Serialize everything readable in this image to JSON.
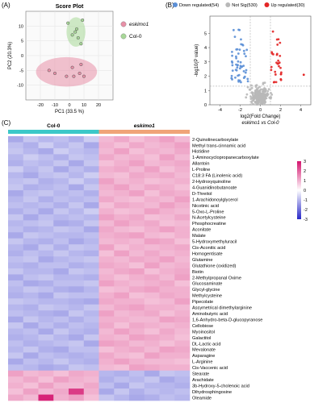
{
  "panels": {
    "a_label": "(A)",
    "b_label": "(B)",
    "c_label": "(C)"
  },
  "chart_data": [
    {
      "type": "scatter",
      "title": "Score Plot",
      "xlabel": "PC1 (33.5 %)",
      "ylabel": "PC2 (20.3%)",
      "xlim": [
        -30,
        30
      ],
      "ylim": [
        -15,
        15
      ],
      "xticks": [
        "-20",
        "-10",
        "0",
        "10",
        "20"
      ],
      "yticks": [
        "-10",
        "-5",
        "0",
        "5",
        "10"
      ],
      "grid": true,
      "legend_position": "right",
      "colors": {
        "eskimo1": "#e890a8",
        "Col-0": "#a8d898"
      },
      "series": [
        {
          "name": "eskimo1",
          "x": [
            -14,
            -10,
            -2,
            2,
            3,
            7,
            8,
            10
          ],
          "y": [
            -5,
            -6,
            -7,
            -4,
            -7,
            -6,
            -3,
            -7
          ]
        },
        {
          "name": "Col-0",
          "x": [
            -1,
            2,
            4,
            5,
            6,
            8,
            9
          ],
          "y": [
            11,
            7,
            8,
            9,
            6,
            4,
            12
          ]
        }
      ],
      "ellipses": [
        {
          "series": "eskimo1",
          "cx": -2,
          "cy": -5.5,
          "rx": 21,
          "ry": 5
        },
        {
          "series": "Col-0",
          "cx": 4.5,
          "cy": 8,
          "rx": 6.5,
          "ry": 5
        }
      ]
    },
    {
      "type": "scatter",
      "title": "",
      "xlabel": "log2(Fold Change)",
      "xlabel2": "eskimo1 vs Col-0",
      "ylabel": "-log10(P value)",
      "xlim": [
        -5,
        5
      ],
      "ylim": [
        0,
        6.2
      ],
      "xticks": [
        "-4",
        "-2",
        "0",
        "2",
        "4"
      ],
      "yticks": [
        "0",
        "1",
        "2",
        "3",
        "4",
        "5"
      ],
      "thresholds": {
        "fc": [
          -1,
          1
        ],
        "p": 1.3
      },
      "legend_position": "top",
      "series": [
        {
          "name": "Down regulated(54)",
          "color": "#5b8fd6"
        },
        {
          "name": "Not Sig(530)",
          "color": "#b8b8b8"
        },
        {
          "name": "Up regulated(30)",
          "color": "#e32626"
        }
      ],
      "outlier_up": [
        {
          "x": 4.3,
          "y": 2.1
        }
      ]
    },
    {
      "type": "heatmap",
      "groups": [
        {
          "name": "Col-0",
          "columns": 6,
          "color": "#3cc8c8"
        },
        {
          "name": "eskimo1",
          "columns": 6,
          "color": "#f0a478"
        }
      ],
      "colorbar": {
        "min": -3,
        "max": 3,
        "ticks": [
          "3",
          "2",
          "1",
          "0",
          "-1",
          "-2",
          "-3"
        ],
        "low": "#2828c8",
        "mid": "#ffffff",
        "high": "#d4146e"
      },
      "rows": [
        {
          "label": "2-Quinolinecarboxylate",
          "values": [
            -1.2,
            -0.8,
            -1.0,
            -0.9,
            -1.1,
            -0.7,
            0.9,
            1.1,
            0.8,
            1.0,
            1.2,
            0.9
          ]
        },
        {
          "label": "Methyl trans-cinnamic acid",
          "values": [
            -0.9,
            -1.1,
            -0.7,
            -1.0,
            -0.8,
            -1.2,
            1.0,
            0.8,
            1.1,
            0.9,
            1.0,
            1.2
          ]
        },
        {
          "label": "Histidine",
          "values": [
            -0.8,
            -1.0,
            -1.2,
            -0.7,
            -0.9,
            -1.0,
            0.9,
            1.2,
            0.8,
            1.0,
            0.9,
            1.1
          ]
        },
        {
          "label": "1-Aminocyclopropanecarboxylate",
          "values": [
            -1.0,
            -0.7,
            -0.9,
            -1.1,
            -0.8,
            -0.9,
            1.1,
            0.9,
            1.0,
            0.8,
            1.2,
            0.9
          ]
        },
        {
          "label": "Allantoin",
          "values": [
            -1.1,
            -0.9,
            -1.0,
            -0.8,
            -1.2,
            -0.8,
            0.8,
            1.0,
            1.2,
            0.9,
            1.0,
            1.1
          ]
        },
        {
          "label": "L-Proline",
          "values": [
            -0.7,
            -1.0,
            -0.8,
            -1.2,
            -0.9,
            -1.1,
            1.0,
            1.1,
            0.9,
            1.2,
            0.8,
            1.0
          ]
        },
        {
          "label": "C18:3 FA (Linolenic acid)",
          "values": [
            -1.0,
            -1.2,
            -0.9,
            -0.8,
            -1.0,
            -0.7,
            0.9,
            0.8,
            1.1,
            1.0,
            1.1,
            0.9
          ]
        },
        {
          "label": "2-Hydroxyquinoline",
          "values": [
            -0.9,
            -0.8,
            -1.1,
            -1.0,
            -0.7,
            -1.0,
            1.2,
            0.9,
            1.0,
            0.8,
            0.9,
            1.0
          ]
        },
        {
          "label": "4-Guanidinobutanoate",
          "values": [
            -0.8,
            -1.1,
            -1.0,
            -0.9,
            -1.2,
            -0.8,
            1.0,
            1.2,
            0.9,
            1.1,
            1.0,
            0.8
          ]
        },
        {
          "label": "D-Threitol",
          "values": [
            -1.2,
            -0.9,
            -0.8,
            -1.0,
            -0.9,
            -1.1,
            0.9,
            1.0,
            1.2,
            0.8,
            1.1,
            1.0
          ]
        },
        {
          "label": "1-Arachidonoylglycerol",
          "values": [
            -1.0,
            -0.8,
            -1.1,
            -0.9,
            -1.0,
            -0.9,
            1.1,
            0.9,
            0.8,
            1.0,
            0.9,
            1.2
          ]
        },
        {
          "label": "Nicotinic acid",
          "values": [
            -0.9,
            -1.0,
            -0.9,
            -1.1,
            -0.8,
            -1.2,
            0.8,
            1.1,
            1.0,
            0.9,
            1.2,
            1.0
          ]
        },
        {
          "label": "5-Oxo-L-Proline",
          "values": [
            -1.1,
            -0.9,
            -1.2,
            -0.8,
            -1.0,
            -0.7,
            1.0,
            0.8,
            0.9,
            1.2,
            1.0,
            0.9
          ]
        },
        {
          "label": "N-Acetylcysteine",
          "values": [
            -0.8,
            -1.2,
            -0.9,
            -1.0,
            -0.9,
            -1.0,
            1.2,
            1.0,
            1.1,
            0.8,
            0.9,
            1.1
          ]
        },
        {
          "label": "Phosphocreatine",
          "values": [
            -1.0,
            -0.9,
            -0.8,
            -1.2,
            -1.1,
            -0.8,
            0.9,
            1.2,
            1.0,
            1.1,
            0.8,
            0.9
          ]
        },
        {
          "label": "Aconitate",
          "values": [
            -0.9,
            -1.1,
            -1.0,
            -0.8,
            -0.9,
            -1.2,
            1.1,
            0.9,
            0.8,
            1.0,
            1.2,
            1.0
          ]
        },
        {
          "label": "Malate",
          "values": [
            -1.2,
            -0.8,
            -0.9,
            -1.0,
            -1.0,
            -0.9,
            1.0,
            1.1,
            1.2,
            0.9,
            0.8,
            1.0
          ]
        },
        {
          "label": "5-Hydroxymethyluracil",
          "values": [
            -0.8,
            -1.0,
            -1.1,
            -0.9,
            -1.2,
            -1.0,
            0.9,
            1.0,
            0.9,
            1.2,
            1.1,
            0.8
          ]
        },
        {
          "label": "Cis-Aconitic acid",
          "values": [
            -1.0,
            -1.2,
            -0.8,
            -1.1,
            -0.8,
            -0.9,
            1.2,
            0.8,
            1.0,
            0.9,
            1.0,
            1.1
          ]
        },
        {
          "label": "Homogentisate",
          "values": [
            -1.1,
            -0.9,
            -1.0,
            -0.8,
            -1.0,
            -1.1,
            0.8,
            1.2,
            0.9,
            1.1,
            0.9,
            1.0
          ]
        },
        {
          "label": "Glutamine",
          "values": [
            -0.9,
            -0.8,
            -1.2,
            -1.0,
            -0.9,
            -0.8,
            1.0,
            0.9,
            1.1,
            1.0,
            1.2,
            0.9
          ]
        },
        {
          "label": "Glutathione (oxidized)",
          "values": [
            -1.0,
            -1.1,
            -0.9,
            -0.9,
            -1.1,
            -1.0,
            1.1,
            1.0,
            0.8,
            1.2,
            0.9,
            1.0
          ]
        },
        {
          "label": "Biotin",
          "values": [
            -0.8,
            -1.0,
            -1.0,
            -1.2,
            -0.8,
            -0.9,
            0.9,
            1.1,
            1.2,
            0.8,
            1.0,
            1.1
          ]
        },
        {
          "label": "2-Methylpropanal Oxime",
          "values": [
            -1.2,
            -0.9,
            -0.8,
            -1.0,
            -1.0,
            -1.1,
            1.0,
            0.8,
            1.0,
            1.1,
            0.9,
            1.2
          ]
        },
        {
          "label": "Glucosaminate",
          "values": [
            -0.9,
            -1.2,
            -1.1,
            -0.9,
            -0.9,
            -0.8,
            1.2,
            1.0,
            0.9,
            1.0,
            1.1,
            0.8
          ]
        },
        {
          "label": "Glycyl-glycine",
          "values": [
            -1.0,
            -0.8,
            -0.9,
            -1.1,
            -1.2,
            -1.0,
            0.8,
            0.9,
            1.1,
            1.2,
            1.0,
            1.0
          ]
        },
        {
          "label": "Methylcysteine",
          "values": [
            -1.1,
            -1.0,
            -1.2,
            -0.8,
            -0.9,
            -0.9,
            1.0,
            1.2,
            0.8,
            0.9,
            1.1,
            1.0
          ]
        },
        {
          "label": "Pipecolate",
          "values": [
            -0.8,
            -0.9,
            -1.0,
            -1.0,
            -1.1,
            -1.2,
            1.1,
            1.0,
            1.0,
            0.8,
            0.9,
            1.2
          ]
        },
        {
          "label": "Assymetrical dimethylarginine",
          "values": [
            -1.0,
            -1.1,
            -0.8,
            -0.9,
            -1.0,
            -0.8,
            0.9,
            1.1,
            1.2,
            1.0,
            1.0,
            0.9
          ]
        },
        {
          "label": "Aminobutyric acid",
          "values": [
            -0.9,
            -1.0,
            -1.1,
            -1.2,
            -0.8,
            -1.0,
            1.2,
            0.9,
            1.0,
            1.1,
            0.8,
            1.0
          ]
        },
        {
          "label": "1,6-Anhydro-beta-D-glucopyranose",
          "values": [
            -1.2,
            -0.8,
            -1.0,
            -0.9,
            -1.1,
            -0.9,
            1.0,
            1.0,
            0.9,
            0.9,
            1.2,
            1.1
          ]
        },
        {
          "label": "Cellobiose",
          "values": [
            -0.8,
            -1.2,
            -0.9,
            -1.1,
            -0.9,
            -1.0,
            1.1,
            0.8,
            1.1,
            1.0,
            0.9,
            1.0
          ]
        },
        {
          "label": "Myoinositol",
          "values": [
            -1.0,
            -0.9,
            -1.2,
            -0.8,
            -1.0,
            -1.1,
            0.9,
            1.2,
            1.0,
            0.8,
            1.1,
            0.9
          ]
        },
        {
          "label": "Galactitol",
          "values": [
            -1.1,
            -1.0,
            -0.8,
            -1.0,
            -1.2,
            -0.8,
            1.0,
            0.9,
            1.2,
            1.1,
            1.0,
            0.8
          ]
        },
        {
          "label": "DL-Lactic acid",
          "values": [
            -0.9,
            -1.1,
            -1.0,
            -0.9,
            -0.8,
            -1.2,
            1.2,
            1.1,
            0.9,
            1.0,
            0.8,
            1.0
          ]
        },
        {
          "label": "Mevalonate",
          "values": [
            -1.0,
            -0.8,
            -1.1,
            -1.2,
            -0.9,
            -0.9,
            0.8,
            1.0,
            1.1,
            0.9,
            1.2,
            1.1
          ]
        },
        {
          "label": "Asparagine",
          "values": [
            -0.8,
            -1.2,
            -0.9,
            -1.0,
            -1.1,
            -1.0,
            1.1,
            0.9,
            0.8,
            1.2,
            1.0,
            1.0
          ]
        },
        {
          "label": "L-Arginine",
          "values": [
            -1.2,
            -0.9,
            -1.0,
            -0.8,
            -1.0,
            -1.1,
            1.0,
            1.2,
            1.0,
            0.9,
            0.9,
            0.8
          ]
        },
        {
          "label": "Cis-Vaccenic acid",
          "values": [
            -0.9,
            -1.0,
            -1.2,
            -1.1,
            -0.8,
            -0.9,
            0.9,
            0.8,
            1.2,
            1.1,
            1.0,
            1.0
          ]
        },
        {
          "label": "Stearate",
          "values": [
            1.2,
            0.9,
            1.0,
            0.8,
            1.1,
            1.0,
            -1.0,
            -1.1,
            -0.9,
            -1.2,
            -0.8,
            -0.9
          ]
        },
        {
          "label": "Arachidate",
          "values": [
            0.9,
            1.1,
            0.8,
            1.2,
            1.0,
            0.9,
            -1.1,
            -0.9,
            -1.0,
            -0.8,
            -1.2,
            -1.0
          ]
        },
        {
          "label": "3b-Hydroxy-5-cholenoic acid",
          "values": [
            1.0,
            0.8,
            1.2,
            0.9,
            0.9,
            1.1,
            -0.9,
            -1.2,
            -0.8,
            -1.0,
            -1.0,
            -1.1
          ]
        },
        {
          "label": "Dihydrosphingosine",
          "values": [
            0.8,
            1.2,
            0.9,
            1.1,
            2.5,
            1.0,
            -1.2,
            -0.8,
            -1.1,
            -0.9,
            -1.0,
            -0.9
          ]
        },
        {
          "label": "Oleamide",
          "values": [
            1.1,
            0.9,
            2.8,
            1.0,
            1.2,
            0.8,
            -0.8,
            -1.0,
            -1.2,
            -1.1,
            -0.9,
            -1.0
          ]
        }
      ]
    }
  ]
}
